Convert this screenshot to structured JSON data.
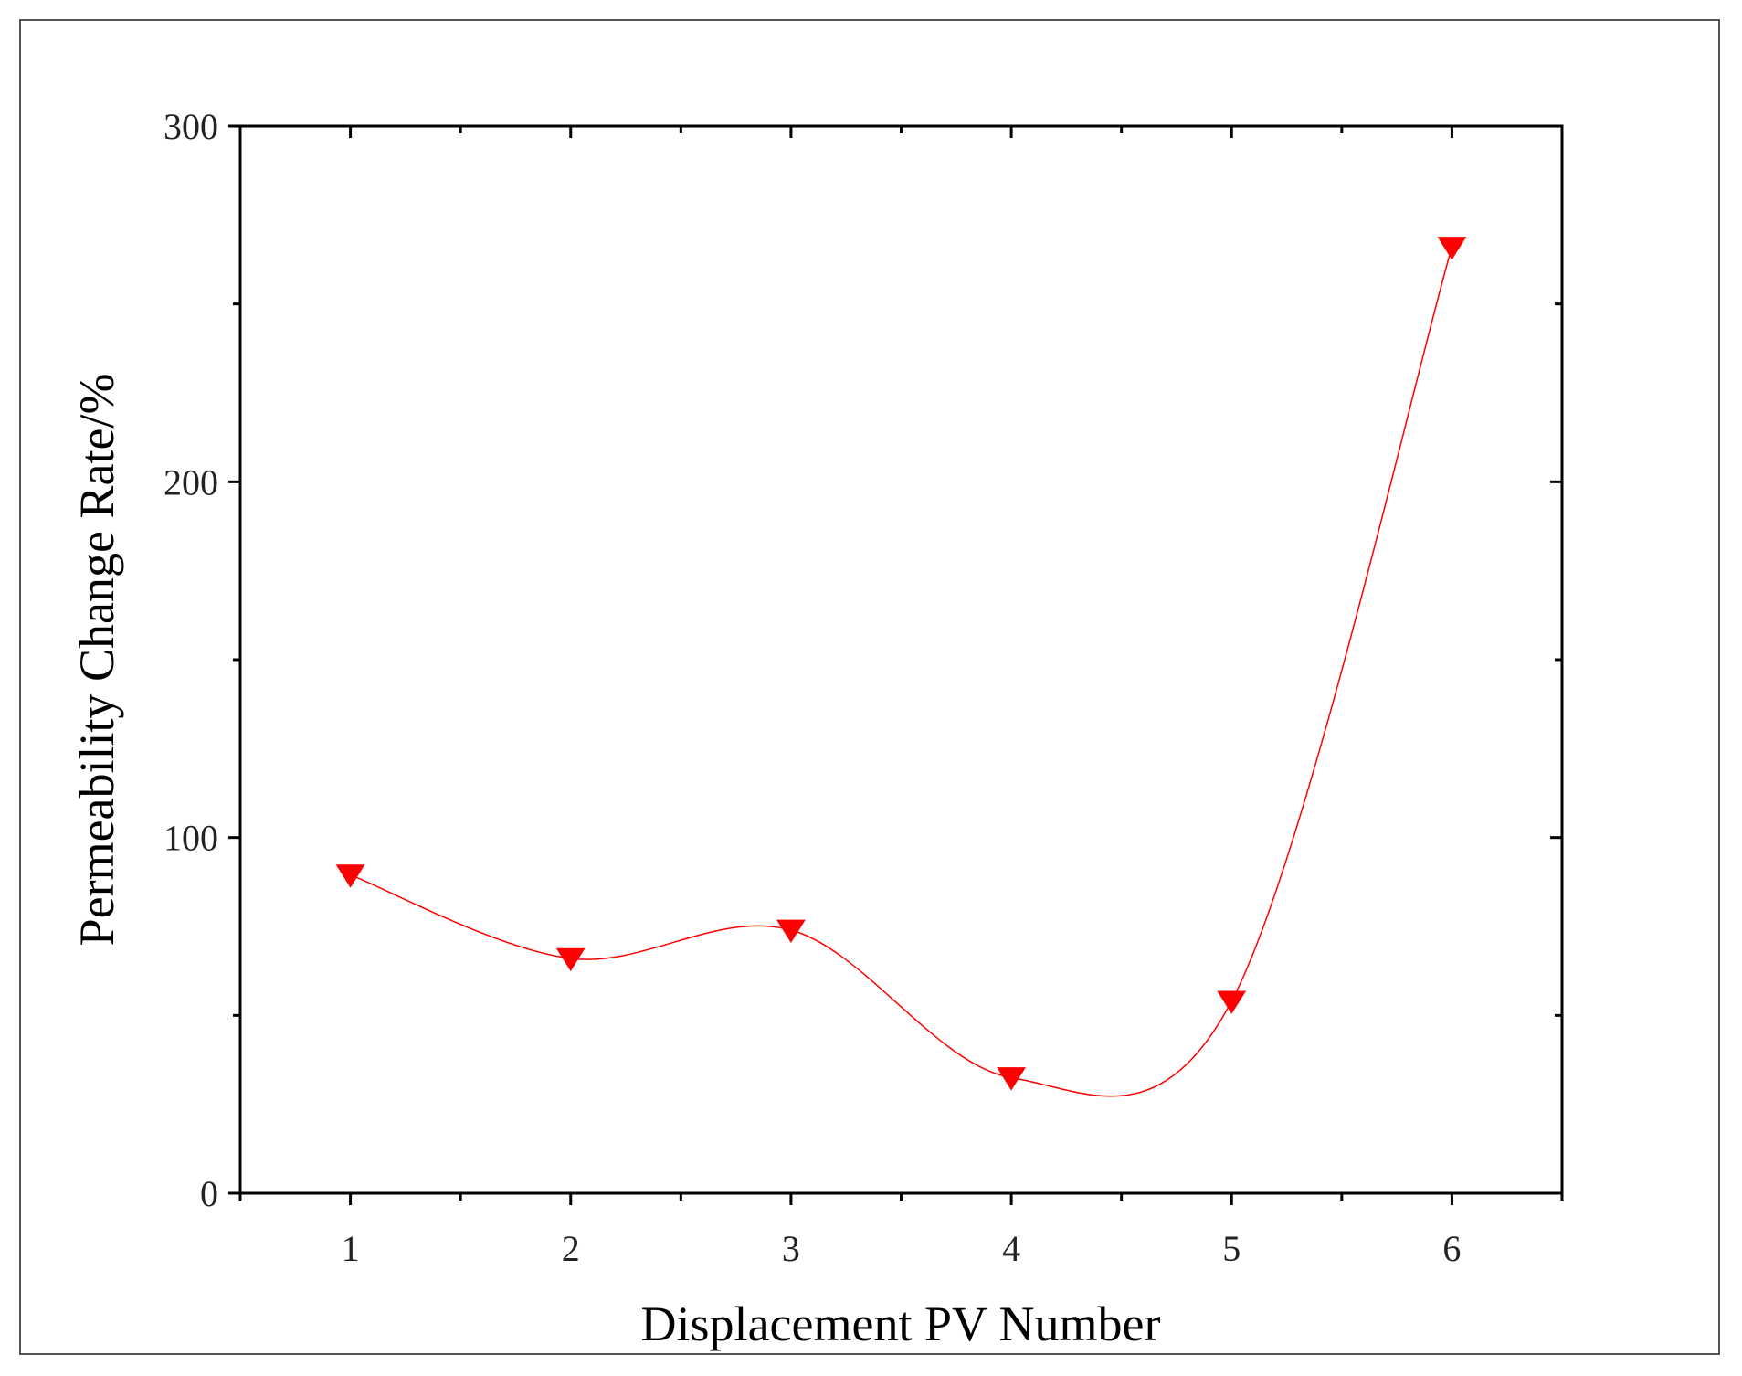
{
  "chart_data": {
    "type": "line",
    "title": "",
    "xlabel": "Displacement PV Number",
    "ylabel": "Permeability Change Rate/%",
    "x": [
      1,
      2,
      3,
      4,
      5,
      6
    ],
    "x_ticks": [
      "1",
      "2",
      "3",
      "4",
      "5",
      "6"
    ],
    "xlim": [
      0.5,
      6.5
    ],
    "y_ticks": [
      "0",
      "100",
      "200",
      "300"
    ],
    "ylim": [
      0,
      300
    ],
    "grid": false,
    "legend": "none",
    "series": [
      {
        "values": [
          89.5,
          66,
          74,
          32.5,
          54,
          266
        ],
        "color": "#ff0000",
        "marker": "down-triangle",
        "smooth": true
      }
    ]
  }
}
